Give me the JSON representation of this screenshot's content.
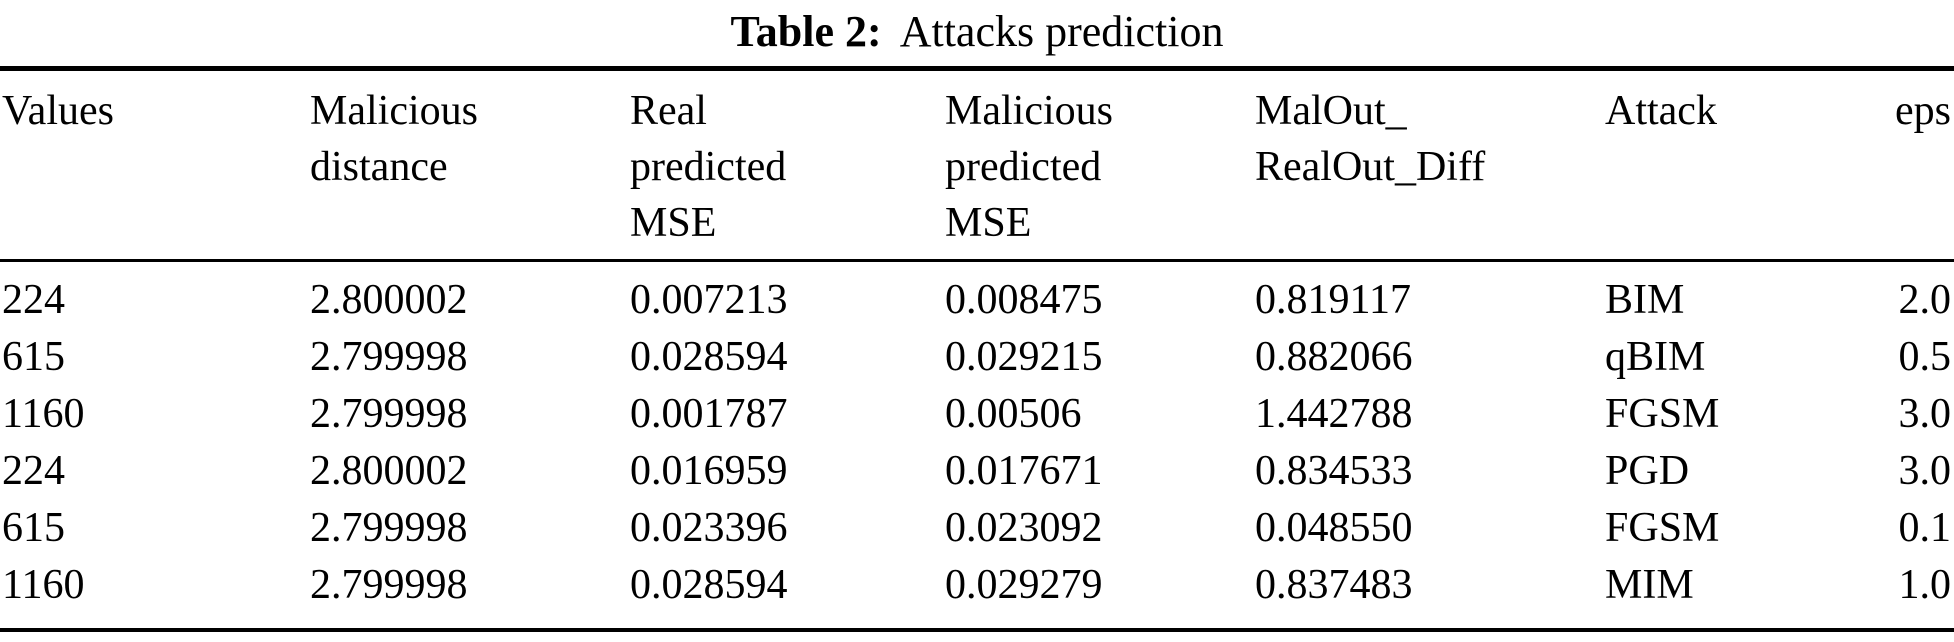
{
  "table": {
    "caption": {
      "label": "Table 2:",
      "text": "Attacks prediction"
    },
    "columns": [
      {
        "name": "Values",
        "lines": [
          "Values"
        ]
      },
      {
        "name": "Malicious distance",
        "lines": [
          "Malicious",
          "distance"
        ]
      },
      {
        "name": "Real predicted MSE",
        "lines": [
          "Real",
          "predicted",
          "MSE"
        ]
      },
      {
        "name": "Malicious predicted MSE",
        "lines": [
          "Malicious",
          "predicted",
          "MSE"
        ]
      },
      {
        "name": "MalOut_RealOut_Diff",
        "lines": [
          "MalOut_",
          "RealOut_Diff"
        ]
      },
      {
        "name": "Attack",
        "lines": [
          "Attack"
        ]
      },
      {
        "name": "eps",
        "lines": [
          "eps"
        ]
      }
    ],
    "rows": [
      [
        "224",
        "2.800002",
        "0.007213",
        "0.008475",
        "0.819117",
        "BIM",
        "2.0"
      ],
      [
        "615",
        "2.799998",
        "0.028594",
        "0.029215",
        "0.882066",
        "qBIM",
        "0.5"
      ],
      [
        "1160",
        "2.799998",
        "0.001787",
        "0.00506",
        "1.442788",
        "FGSM",
        "3.0"
      ],
      [
        "224",
        "2.800002",
        "0.016959",
        "0.017671",
        "0.834533",
        "PGD",
        "3.0"
      ],
      [
        "615",
        "2.799998",
        "0.023396",
        "0.023092",
        "0.048550",
        "FGSM",
        "0.1"
      ],
      [
        "1160",
        "2.799998",
        "0.028594",
        "0.029279",
        "0.837483",
        "MIM",
        "1.0"
      ]
    ],
    "colors": {
      "text": "#000000",
      "background": "#ffffff",
      "rule": "#000000"
    }
  }
}
